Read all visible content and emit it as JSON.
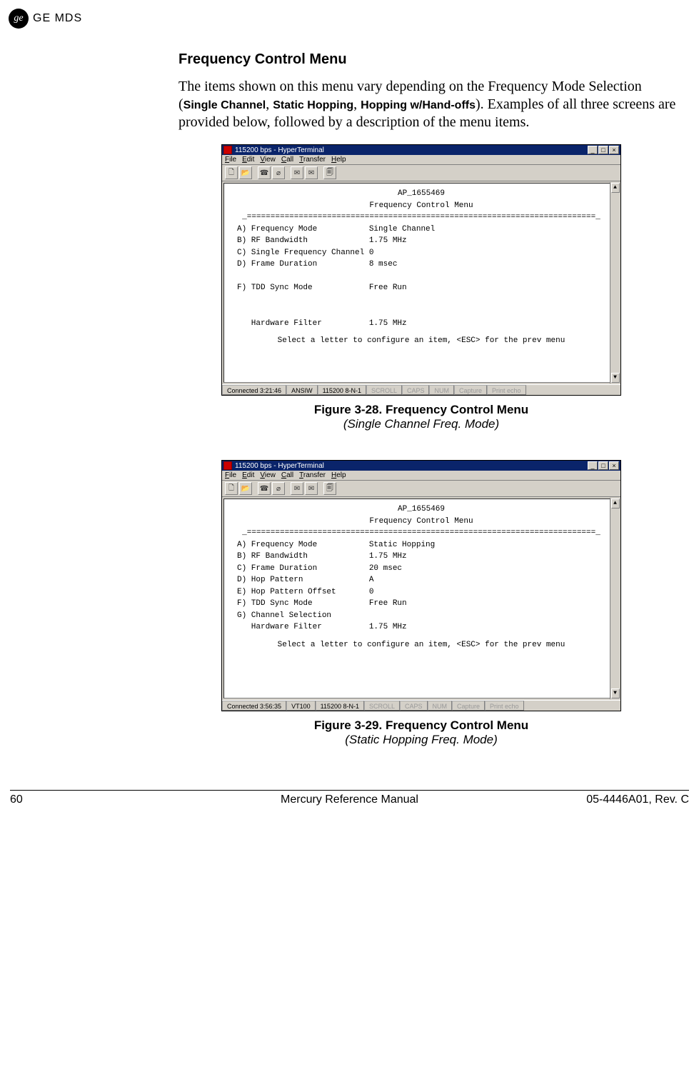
{
  "logo": {
    "badge": "ge",
    "brand": "GE MDS"
  },
  "section_title": "Frequency Control Menu",
  "paragraph": {
    "p1a": "The items shown on this menu vary depending on the Frequency Mode Selection (",
    "m1": "Single Channel",
    "sep1": ", ",
    "m2": "Static Hopping",
    "sep2": ", ",
    "m3": "Hopping w/Hand-offs",
    "p1b": "). Examples of all three screens are provided below, followed by a description of the menu items."
  },
  "ht_common": {
    "win_title": "115200 bps - HyperTerminal",
    "menus": {
      "file": "File",
      "edit": "Edit",
      "view": "View",
      "call": "Call",
      "transfer": "Transfer",
      "help": "Help"
    },
    "term_header": "AP_1655469",
    "term_title": "Frequency Control Menu",
    "rule": "_==========================================================================_",
    "prompt": "Select a letter to configure an item, <ESC> for the prev menu",
    "status_dim": {
      "scroll": "SCROLL",
      "caps": "CAPS",
      "num": "NUM",
      "capture": "Capture",
      "print": "Print echo"
    }
  },
  "screenshot1": {
    "rows": [
      {
        "k": "A) Frequency Mode",
        "v": "Single Channel"
      },
      {
        "k": "B) RF Bandwidth",
        "v": "1.75 MHz"
      },
      {
        "k": "C) Single Frequency Channel",
        "v": "0"
      },
      {
        "k": "D) Frame Duration",
        "v": "8 msec"
      },
      {
        "k": "",
        "v": ""
      },
      {
        "k": "F) TDD Sync Mode",
        "v": "Free Run"
      },
      {
        "k": "",
        "v": ""
      },
      {
        "k": "",
        "v": ""
      },
      {
        "k": "   Hardware Filter",
        "v": "1.75 MHz"
      }
    ],
    "status": {
      "conn": "Connected 3:21:46",
      "emul": "ANSIW",
      "port": "115200 8-N-1"
    },
    "caption_bold": "Figure 3-28. Frequency Control Menu",
    "caption_ital": "(Single Channel Freq. Mode)"
  },
  "screenshot2": {
    "rows": [
      {
        "k": "A) Frequency Mode",
        "v": "Static Hopping"
      },
      {
        "k": "B) RF Bandwidth",
        "v": "1.75 MHz"
      },
      {
        "k": "C) Frame Duration",
        "v": "20 msec"
      },
      {
        "k": "D) Hop Pattern",
        "v": "A"
      },
      {
        "k": "E) Hop Pattern Offset",
        "v": "0"
      },
      {
        "k": "F) TDD Sync Mode",
        "v": "Free Run"
      },
      {
        "k": "G) Channel Selection",
        "v": ""
      },
      {
        "k": "   Hardware Filter",
        "v": "1.75 MHz"
      }
    ],
    "status": {
      "conn": "Connected 3:56:35",
      "emul": "VT100",
      "port": "115200 8-N-1"
    },
    "caption_bold": "Figure 3-29. Frequency Control Menu",
    "caption_ital": "(Static Hopping Freq. Mode)"
  },
  "footer": {
    "page": "60",
    "center": "Mercury Reference Manual",
    "right": "05-4446A01, Rev. C"
  }
}
